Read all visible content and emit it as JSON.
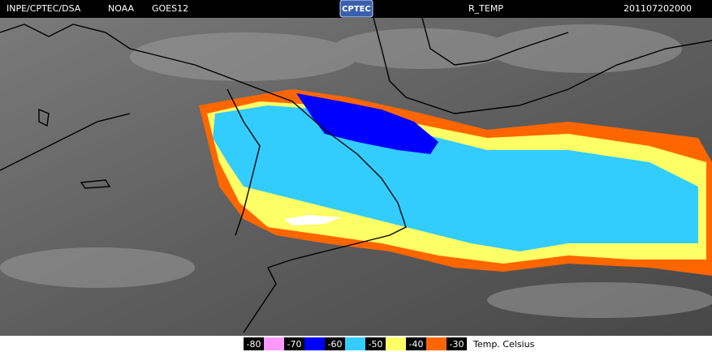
{
  "header": {
    "source": "INPE/CPTEC/DSA",
    "agency": "NOAA",
    "satellite": "GOES12",
    "logo": "CPTEC",
    "product": "R_TEMP",
    "timestamp": "201107202000"
  },
  "legend": {
    "items": [
      {
        "value": -80,
        "color": "#ff99ff"
      },
      {
        "value": -70,
        "color": "#0000ff"
      },
      {
        "value": -60,
        "color": "#33ccff"
      },
      {
        "value": -50,
        "color": "#ffff66"
      },
      {
        "value": -40,
        "color": "#ff6600"
      },
      {
        "value": -30,
        "color": "#000000"
      }
    ],
    "unit": "Temp. Celsius"
  }
}
